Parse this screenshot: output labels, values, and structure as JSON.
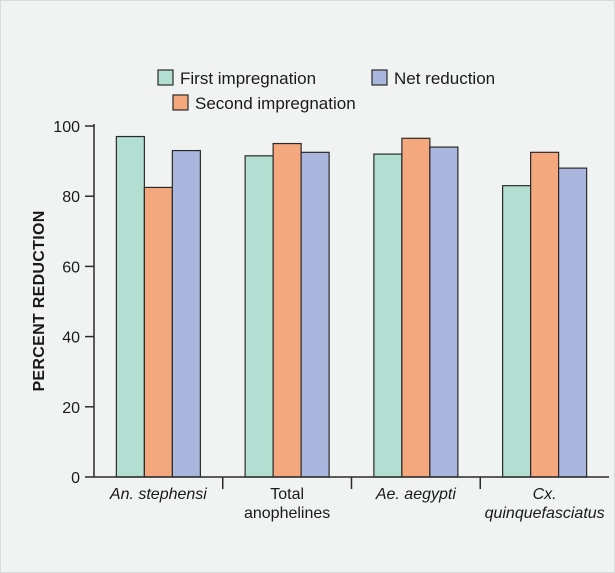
{
  "chart_data": {
    "type": "bar",
    "categories": [
      {
        "lines": [
          "An. stephensi"
        ],
        "italic": true
      },
      {
        "lines": [
          "Total",
          "anophelines"
        ],
        "italic": false
      },
      {
        "lines": [
          "Ae. aegypti"
        ],
        "italic": true
      },
      {
        "lines": [
          "Cx.",
          "quinquefasciatus"
        ],
        "italic": true
      }
    ],
    "series": [
      {
        "name": "First impregnation",
        "color": "#b3ded2",
        "values": [
          97,
          91.5,
          92,
          83
        ]
      },
      {
        "name": "Second impregnation",
        "color": "#f5a77d",
        "values": [
          82.5,
          95,
          96.5,
          92.5
        ]
      },
      {
        "name": "Net reduction",
        "color": "#aab6dd",
        "values": [
          93,
          92.5,
          94,
          88
        ]
      }
    ],
    "title": "",
    "xlabel": "",
    "ylabel": "PERCENT REDUCTION",
    "ylim": [
      0,
      100
    ],
    "yticks": [
      0,
      20,
      40,
      60,
      80,
      100
    ],
    "grid": false,
    "legend_position": "top-center"
  }
}
